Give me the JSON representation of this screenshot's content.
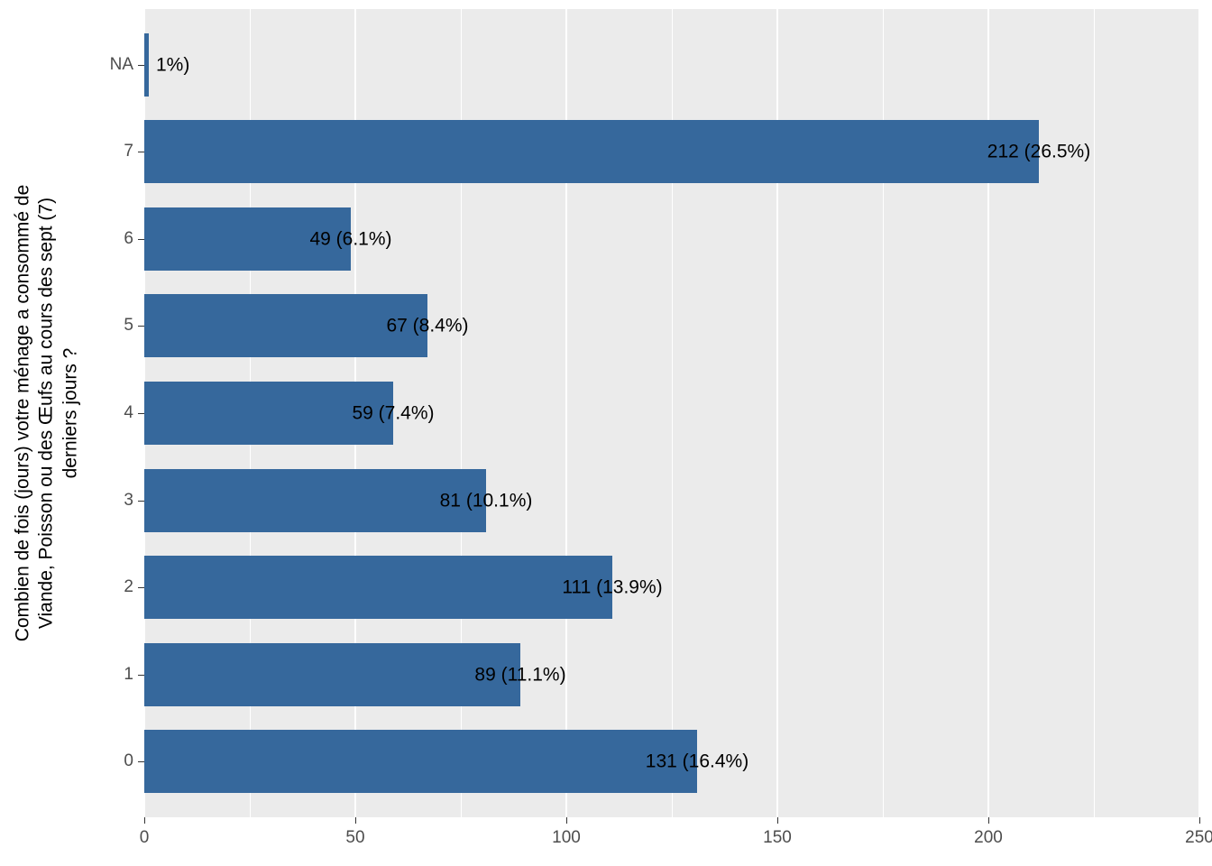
{
  "figure": {
    "background": "#FFFFFF",
    "panel_background": "#EBEBEB",
    "grid_color": "#FFFFFF",
    "bar_color": "#36689C",
    "axis_text_color": "#4D4D4D",
    "bar_label_color": "#000000"
  },
  "chart_data": {
    "type": "bar",
    "orientation": "horizontal",
    "title": "",
    "xlabel": "",
    "ylabel": "Combien de fois (jours) votre ménage a consommé de\nViande, Poisson ou des Œufs au cours des sept (7)\nderniers jours ?",
    "categories": [
      "NA",
      "7",
      "6",
      "5",
      "4",
      "3",
      "2",
      "1",
      "0"
    ],
    "values": [
      1,
      212,
      49,
      67,
      59,
      81,
      111,
      89,
      131
    ],
    "bar_labels": [
      "1%)",
      "212 (26.5%)",
      "49 (6.1%)",
      "67 (8.4%)",
      "59 (7.4%)",
      "81 (10.1%)",
      "111 (13.9%)",
      "89 (11.1%)",
      "131 (16.4%)"
    ],
    "x_ticks": [
      0,
      50,
      100,
      150,
      200,
      250
    ],
    "x_minor_ticks": [
      25,
      75,
      125,
      175,
      225
    ],
    "xlim": [
      0,
      250
    ],
    "grid": true,
    "legend_position": "none"
  }
}
